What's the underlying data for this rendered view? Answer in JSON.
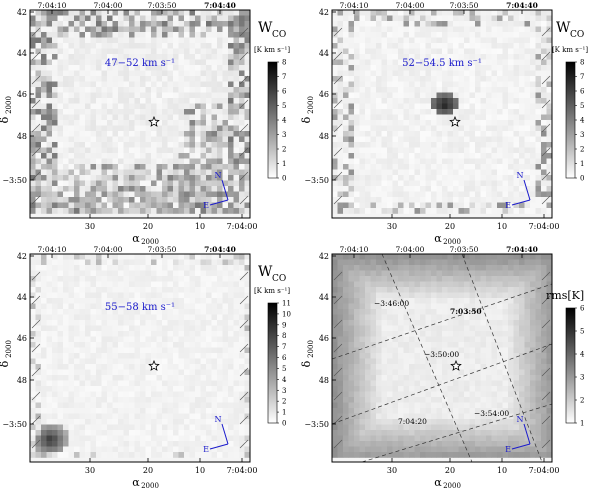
{
  "figure": {
    "panels": [
      {
        "id": "top-left",
        "velocity_label": "47−52 km s⁻¹",
        "quantity_label": "W",
        "quantity_sub": "CO",
        "colorbar_unit": "[K km s⁻¹]",
        "colorbar_ticks": [
          "8",
          "7",
          "6",
          "5",
          "4",
          "3",
          "2",
          "1",
          "0"
        ],
        "top_ticks": [
          "7:04:10",
          "7:04:00",
          "7:03:50",
          "7:04:40"
        ],
        "bottom_ticks": [
          "30",
          "20",
          "10",
          "7:04:00"
        ],
        "left_ticks": [
          "42",
          "44",
          "46",
          "48",
          "−3:50"
        ],
        "xlabel": "α",
        "xlabel_sub": "2000",
        "ylabel": "δ",
        "ylabel_sub": "2000",
        "compass_n": "N",
        "compass_e": "E"
      },
      {
        "id": "top-right",
        "velocity_label": "52−54.5 km s⁻¹",
        "quantity_label": "W",
        "quantity_sub": "CO",
        "colorbar_unit": "[K km s⁻¹]",
        "colorbar_ticks": [
          "8",
          "7",
          "6",
          "5",
          "4",
          "3",
          "2",
          "1",
          "0"
        ],
        "top_ticks": [
          "7:04:10",
          "7:04:00",
          "7:03:50",
          "7:04:40"
        ],
        "bottom_ticks": [
          "30",
          "20",
          "10",
          "7:04:00"
        ],
        "left_ticks": [
          "42",
          "44",
          "46",
          "48",
          "−3:50"
        ],
        "xlabel": "α",
        "xlabel_sub": "2000",
        "ylabel": "δ",
        "ylabel_sub": "2000",
        "compass_n": "N",
        "compass_e": "E"
      },
      {
        "id": "bottom-left",
        "velocity_label": "55−58 km s⁻¹",
        "quantity_label": "W",
        "quantity_sub": "CO",
        "colorbar_unit": "[K km s⁻¹]",
        "colorbar_ticks": [
          "11",
          "10",
          "9",
          "8",
          "7",
          "6",
          "5",
          "4",
          "3",
          "2",
          "1",
          "0"
        ],
        "top_ticks": [
          "7:04:10",
          "7:04:00",
          "7:03:50",
          "7:04:40"
        ],
        "bottom_ticks": [
          "30",
          "20",
          "10",
          "7:04:00"
        ],
        "left_ticks": [
          "42",
          "44",
          "46",
          "48",
          "−3:50"
        ],
        "xlabel": "α",
        "xlabel_sub": "2000",
        "ylabel": "δ",
        "ylabel_sub": "2000",
        "compass_n": "N",
        "compass_e": "E"
      },
      {
        "id": "bottom-right",
        "velocity_label": "",
        "quantity_label": "rms[K]",
        "quantity_sub": "",
        "colorbar_unit": "",
        "colorbar_ticks": [
          "6",
          "5",
          "4",
          "3",
          "2",
          "1"
        ],
        "top_ticks": [
          "7:04:10",
          "7:04:00",
          "7:03:50",
          "7:04:40"
        ],
        "bottom_ticks": [
          "30",
          "20",
          "10",
          "7:04:00"
        ],
        "left_ticks": [
          "42",
          "44",
          "46",
          "48",
          "−3:50"
        ],
        "xlabel": "α",
        "xlabel_sub": "2000",
        "ylabel": "δ",
        "ylabel_sub": "2000",
        "compass_n": "N",
        "compass_e": "E",
        "grid_labels": [
          "−3:46:00",
          "7:03:50",
          "−3:50:00",
          "7:04:20",
          "−3:54:00"
        ]
      }
    ]
  }
}
